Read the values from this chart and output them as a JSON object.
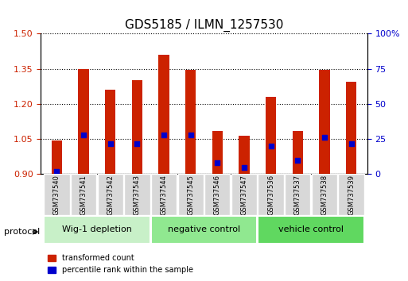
{
  "title": "GDS5185 / ILMN_1257530",
  "samples": [
    "GSM737540",
    "GSM737541",
    "GSM737542",
    "GSM737543",
    "GSM737544",
    "GSM737545",
    "GSM737546",
    "GSM737547",
    "GSM737536",
    "GSM737537",
    "GSM737538",
    "GSM737539"
  ],
  "red_bar_tops": [
    1.045,
    1.35,
    1.26,
    1.3,
    1.41,
    1.345,
    1.085,
    1.065,
    1.23,
    1.085,
    1.345,
    1.295
  ],
  "blue_dot_values": [
    2,
    28,
    22,
    22,
    28,
    28,
    8,
    5,
    20,
    10,
    26,
    22
  ],
  "baseline": 0.9,
  "ylim_left": [
    0.9,
    1.5
  ],
  "ylim_right": [
    0,
    100
  ],
  "yticks_left": [
    0.9,
    1.05,
    1.2,
    1.35,
    1.5
  ],
  "yticks_right": [
    0,
    25,
    50,
    75,
    100
  ],
  "groups": [
    {
      "label": "Wig-1 depletion",
      "start": 0,
      "end": 3,
      "color": "#c8f0c8"
    },
    {
      "label": "negative control",
      "start": 4,
      "end": 7,
      "color": "#90e890"
    },
    {
      "label": "vehicle control",
      "start": 8,
      "end": 11,
      "color": "#60d860"
    }
  ],
  "bar_color": "#cc2200",
  "dot_color": "#0000cc",
  "bg_color": "#f0f0f0",
  "protocol_label": "protocol",
  "legend_red": "transformed count",
  "legend_blue": "percentile rank within the sample",
  "title_fontsize": 11,
  "axis_color_left": "#cc2200",
  "axis_color_right": "#0000cc"
}
